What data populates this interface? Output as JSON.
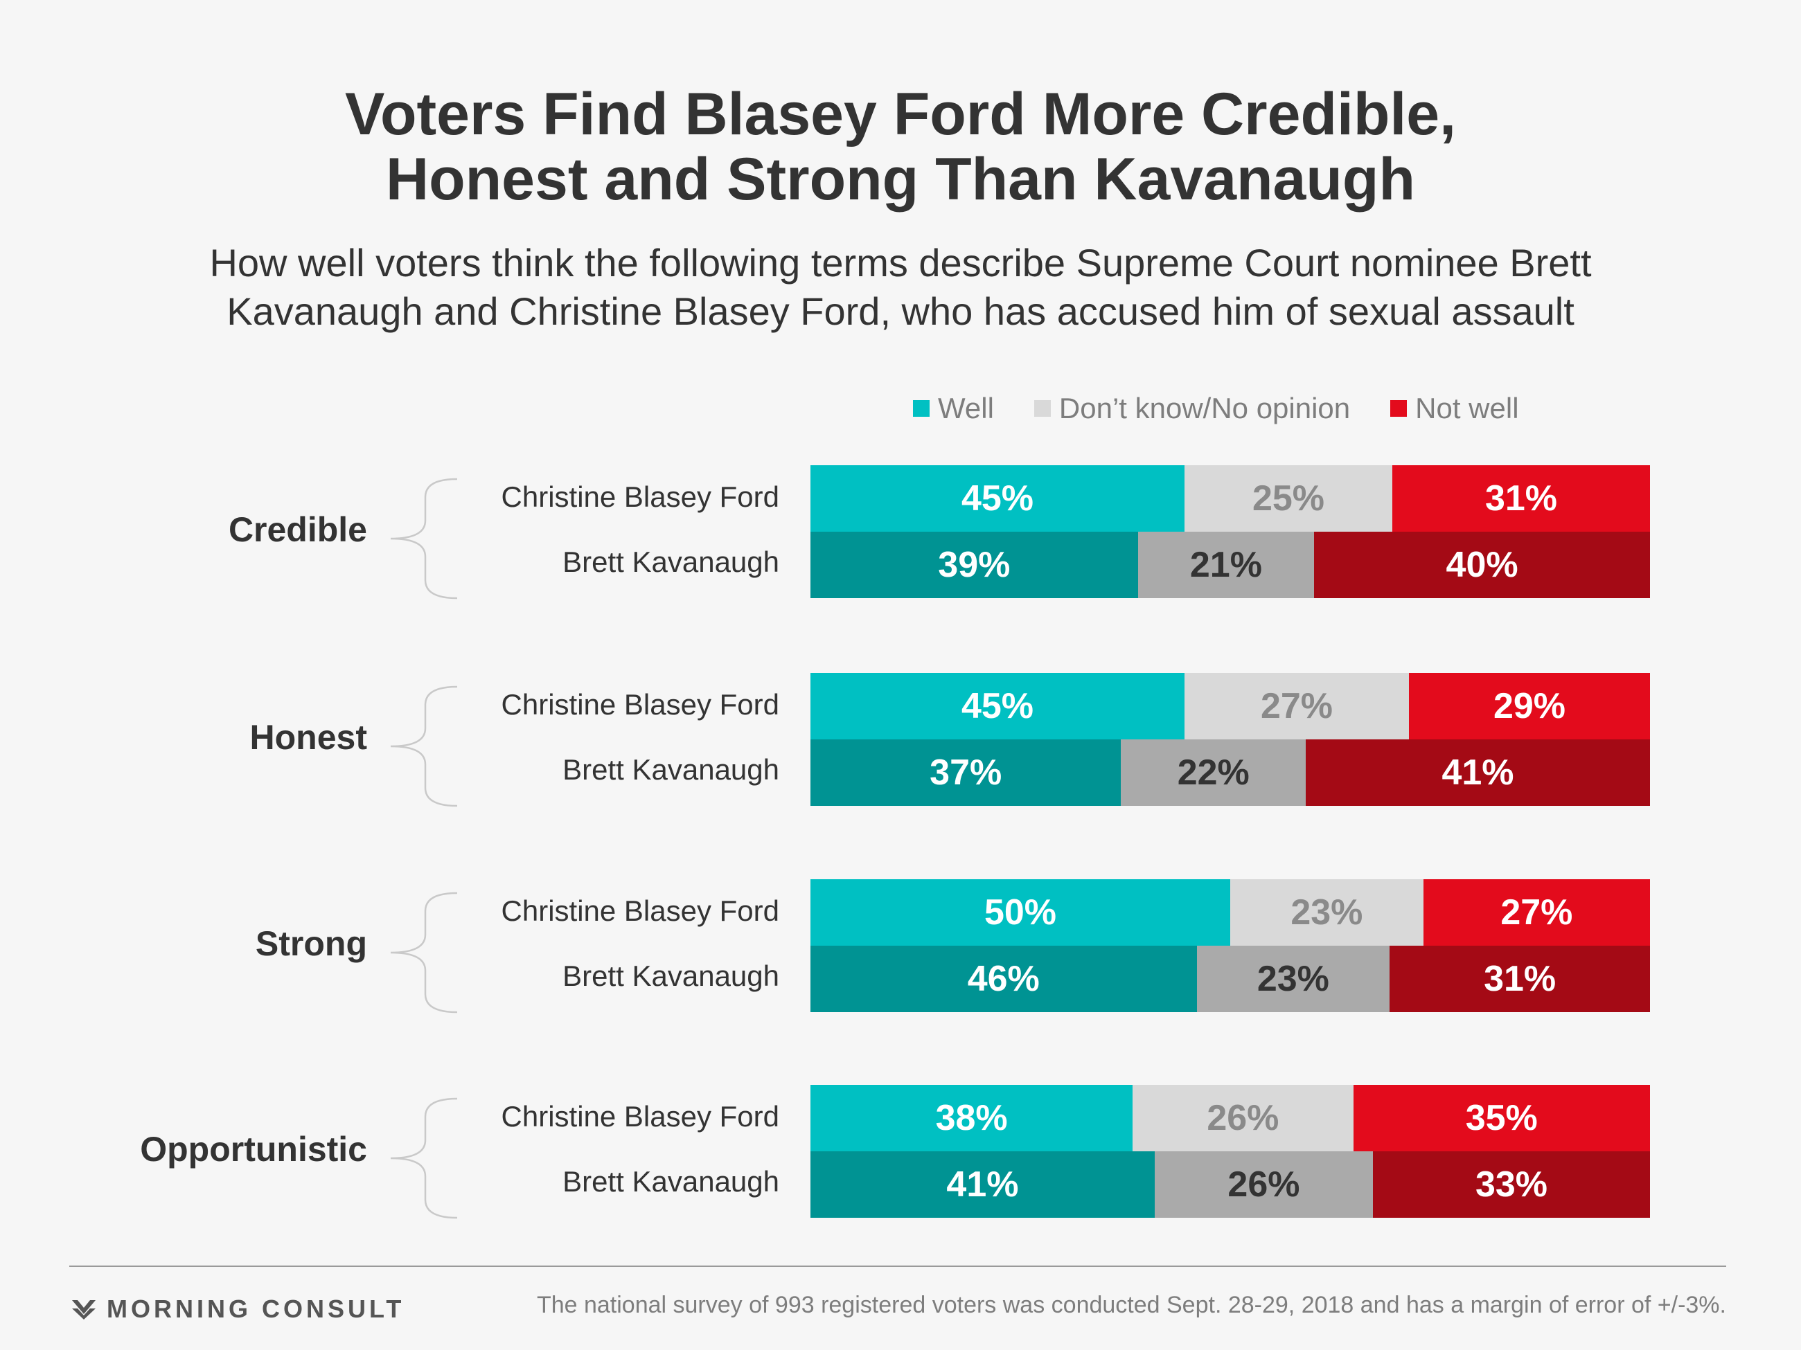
{
  "chart_data": {
    "type": "bar",
    "orientation": "horizontal",
    "stacked": true,
    "title": "Voters Find Blasey Ford More Credible, Honest and Strong Than Kavanaugh",
    "title_lines": [
      "Voters Find Blasey Ford More Credible,",
      "Honest and Strong Than Kavanaugh"
    ],
    "subtitle_lines": [
      "How well voters think the following terms describe Supreme Court nominee Brett",
      "Kavanaugh and Christine Blasey Ford, who has accused him of sexual assault"
    ],
    "legend_position": "top-right",
    "legend": [
      {
        "label": "Well",
        "color": "#00c0c2"
      },
      {
        "label": "Don’t know/No opinion",
        "color": "#d9d9d9"
      },
      {
        "label": "Not well",
        "color": "#e30b1c"
      }
    ],
    "groups": [
      {
        "term": "Credible",
        "rows": [
          {
            "name": "Christine Blasey Ford",
            "values": [
              45,
              25,
              31
            ]
          },
          {
            "name": "Brett Kavanaugh",
            "values": [
              39,
              21,
              40
            ]
          }
        ]
      },
      {
        "term": "Honest",
        "rows": [
          {
            "name": "Christine Blasey Ford",
            "values": [
              45,
              27,
              29
            ]
          },
          {
            "name": "Brett Kavanaugh",
            "values": [
              37,
              22,
              41
            ]
          }
        ]
      },
      {
        "term": "Strong",
        "rows": [
          {
            "name": "Christine Blasey Ford",
            "values": [
              50,
              23,
              27
            ]
          },
          {
            "name": "Brett Kavanaugh",
            "values": [
              46,
              23,
              31
            ]
          }
        ]
      },
      {
        "term": "Opportunistic",
        "rows": [
          {
            "name": "Christine Blasey Ford",
            "values": [
              38,
              26,
              35
            ]
          },
          {
            "name": "Brett Kavanaugh",
            "values": [
              41,
              26,
              33
            ]
          }
        ]
      }
    ],
    "colors": {
      "ford": [
        "#00c0c2",
        "#d9d9d9",
        "#e30b1c"
      ],
      "kavanaugh": [
        "#009393",
        "#aaaaaa",
        "#a40a15"
      ],
      "ford_text": [
        "#ffffff",
        "#8a8a8a",
        "#ffffff"
      ],
      "kavanaugh_text": [
        "#ffffff",
        "#333333",
        "#ffffff"
      ]
    }
  },
  "footer": {
    "logo_text": "MORNING CONSULT",
    "note": "The national survey of 993 registered voters was conducted Sept. 28-29, 2018 and has a margin of error of +/-3%."
  }
}
